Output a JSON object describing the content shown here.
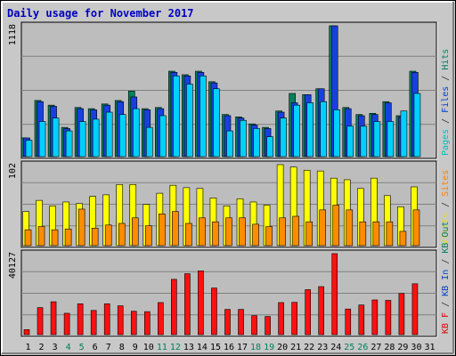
{
  "chart_data": {
    "type": "bar",
    "title": "Daily usage for November 2017",
    "categories": [
      "1",
      "2",
      "3",
      "4",
      "5",
      "6",
      "7",
      "8",
      "9",
      "10",
      "11",
      "12",
      "13",
      "14",
      "15",
      "16",
      "17",
      "18",
      "19",
      "20",
      "21",
      "22",
      "23",
      "24",
      "25",
      "26",
      "27",
      "28",
      "29",
      "30",
      "31"
    ],
    "weekend_days": [
      "4",
      "5",
      "11",
      "12",
      "18",
      "19",
      "25",
      "26"
    ],
    "panels": [
      {
        "name": "top",
        "max_label": "1118",
        "ylim": [
          0,
          1118
        ],
        "axis_labels": [
          {
            "text": "Pages",
            "color": "#00c0c0"
          },
          {
            "text": " / ",
            "color": "#333333"
          },
          {
            "text": "Files",
            "color": "#0040c0"
          },
          {
            "text": " / ",
            "color": "#333333"
          },
          {
            "text": "Hits",
            "color": "#008060"
          }
        ],
        "series": [
          {
            "name": "Hits",
            "color": "#00805c",
            "values": [
              160,
              480,
              440,
              250,
              420,
              410,
              450,
              480,
              560,
              410,
              420,
              730,
              700,
              730,
              640,
              360,
              340,
              280,
              250,
              390,
              540,
              530,
              580,
              1118,
              420,
              360,
              370,
              470,
              350,
              730,
              0
            ]
          },
          {
            "name": "Files",
            "color": "#1840e0",
            "values": [
              160,
              470,
              430,
              240,
              410,
              400,
              440,
              470,
              510,
              400,
              410,
              720,
              690,
              720,
              630,
              350,
              330,
              270,
              240,
              380,
              460,
              530,
              580,
              1118,
              410,
              350,
              360,
              460,
              340,
              720,
              0
            ]
          },
          {
            "name": "Pages",
            "color": "#00d0ff",
            "values": [
              140,
              300,
              330,
              220,
              300,
              320,
              380,
              360,
              410,
              250,
              350,
              690,
              620,
              690,
              580,
              220,
              310,
              240,
              170,
              330,
              440,
              460,
              470,
              400,
              260,
              260,
              300,
              300,
              390,
              540,
              0
            ]
          }
        ]
      },
      {
        "name": "middle",
        "max_label": "102",
        "ylim": [
          0,
          102
        ],
        "axis_labels": [
          {
            "text": "Visits",
            "color": "#e0e000"
          },
          {
            "text": " / ",
            "color": "#333333"
          },
          {
            "text": "Sites",
            "color": "#ff8000"
          }
        ],
        "series": [
          {
            "name": "Visits",
            "color": "#ffff00",
            "values": [
              43,
              57,
              50,
              55,
              53,
              62,
              64,
              77,
              77,
              52,
              66,
              76,
              73,
              72,
              60,
              50,
              59,
              55,
              51,
              102,
              99,
              95,
              94,
              85,
              83,
              72,
              85,
              63,
              49,
              74,
              0
            ]
          },
          {
            "name": "Sites",
            "color": "#ff8c00",
            "values": [
              20,
              24,
              20,
              21,
              46,
              22,
              26,
              28,
              35,
              25,
              40,
              43,
              28,
              35,
              30,
              35,
              35,
              27,
              24,
              35,
              37,
              30,
              45,
              51,
              45,
              30,
              30,
              30,
              18,
              45,
              0
            ]
          }
        ]
      },
      {
        "name": "bottom",
        "max_label": "40127",
        "ylim": [
          0,
          40127
        ],
        "axis_labels": [
          {
            "text": "KB F",
            "color": "#e00000"
          },
          {
            "text": " / ",
            "color": "#333333"
          },
          {
            "text": "KB In",
            "color": "#0040c0"
          },
          {
            "text": " / ",
            "color": "#333333"
          },
          {
            "text": "KB Out",
            "color": "#008060"
          }
        ],
        "series": [
          {
            "name": "KB F",
            "color": "#ff1010",
            "values": [
              2500,
              13400,
              16300,
              10600,
              15300,
              12000,
              15300,
              14300,
              11600,
              11400,
              15900,
              27400,
              30200,
              31600,
              23100,
              12500,
              12500,
              9400,
              9000,
              15900,
              16000,
              22300,
              23800,
              40127,
              12700,
              14700,
              17200,
              17000,
              20400,
              25200,
              0
            ]
          }
        ]
      }
    ]
  }
}
